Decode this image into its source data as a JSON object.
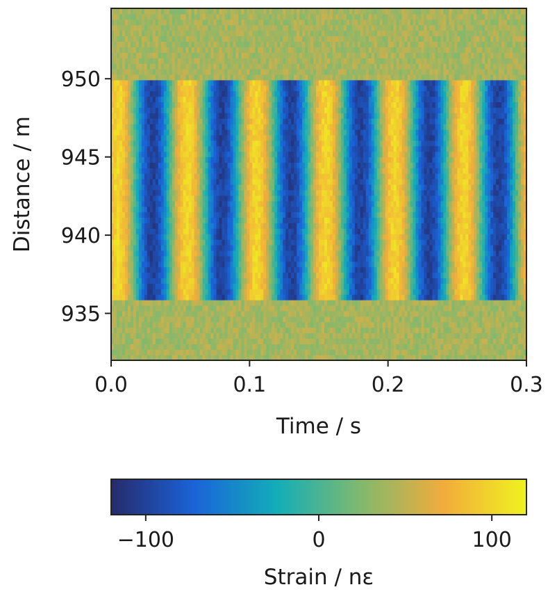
{
  "chart_data": [
    {
      "type": "heatmap",
      "xlabel": "Time / s",
      "ylabel": "Distance / m",
      "xlim": [
        0.0,
        0.3
      ],
      "ylim": [
        932,
        954.5
      ],
      "x_ticks": [
        {
          "value": 0.0,
          "label": "0.0"
        },
        {
          "value": 0.1,
          "label": "0.1"
        },
        {
          "value": 0.2,
          "label": "0.2"
        },
        {
          "value": 0.3,
          "label": "0.3"
        }
      ],
      "y_ticks": [
        {
          "value": 935,
          "label": "935"
        },
        {
          "value": 940,
          "label": "940"
        },
        {
          "value": 945,
          "label": "945"
        },
        {
          "value": 950,
          "label": "950"
        }
      ],
      "signal_region_m": [
        936,
        950
      ],
      "signal_frequency_hz": 20,
      "amplitude_nstrain": 100,
      "background_nstrain": 40,
      "blue_band_centers_s": [
        0.028,
        0.078,
        0.128,
        0.178,
        0.228,
        0.278
      ],
      "yellow_band_centers_s": [
        0.005,
        0.053,
        0.103,
        0.153,
        0.203,
        0.253,
        0.297
      ],
      "grid": false
    },
    {
      "type": "colorbar",
      "label": "Strain / nε",
      "range": [
        -120,
        120
      ],
      "ticks": [
        {
          "value": -100,
          "label": "−100"
        },
        {
          "value": 0,
          "label": "0"
        },
        {
          "value": 100,
          "label": "100"
        }
      ],
      "colors": [
        "#262a6b",
        "#1a63d9",
        "#13aeb8",
        "#80b96e",
        "#f2ac3c",
        "#eff21f"
      ],
      "orientation": "horizontal",
      "placement": "bottom"
    }
  ]
}
